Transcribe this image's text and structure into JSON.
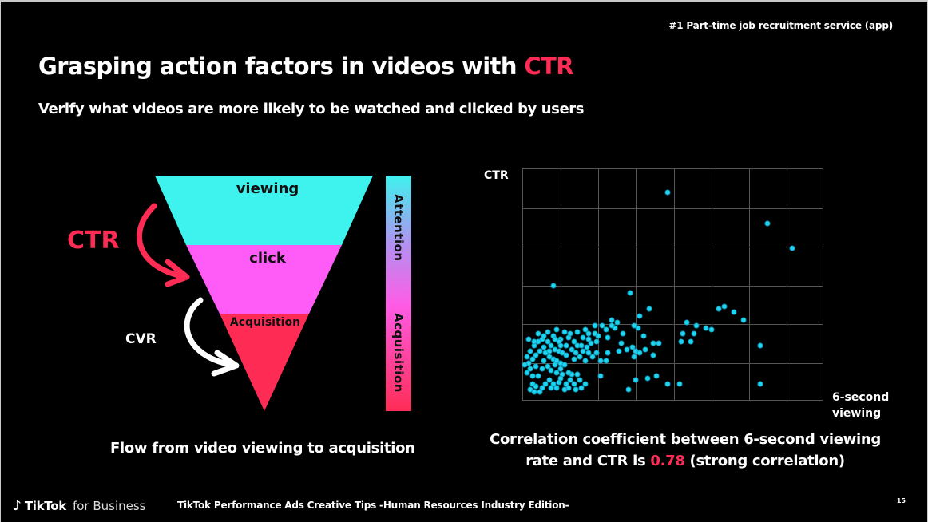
{
  "header": {
    "tagline": "#1 Part-time job recruitment service (app)",
    "title_main": "Grasping action factors in videos with ",
    "title_accent": "CTR",
    "subtitle": "Verify what videos are more likely to be watched and clicked by users"
  },
  "funnel": {
    "stages": [
      {
        "label": "viewing",
        "color": "#3ef2ee"
      },
      {
        "label": "click",
        "color": "#ff5cf7"
      },
      {
        "label": "Acquisition",
        "color": "#fe2c55"
      }
    ],
    "ctr_label": "CTR",
    "cvr_label": "CVR",
    "side_bar": {
      "top_label": "Attention",
      "bottom_label": "Acquisition"
    },
    "caption": "Flow from video viewing to acquisition"
  },
  "scatter": {
    "y_label": "CTR",
    "x_label_line1": "6-second",
    "x_label_line2": "viewing",
    "caption_line1": "Correlation coefficient between 6-second viewing",
    "caption_line2_pre": "rate and CTR is ",
    "caption_value": "0.78",
    "caption_line2_post": " (strong correlation)"
  },
  "chart_data": {
    "type": "scatter",
    "title": "",
    "xlabel": "6-second viewing",
    "ylabel": "CTR",
    "x_grid_divisions": 8,
    "y_grid_divisions": 6,
    "xlim": [
      0,
      8
    ],
    "ylim": [
      0,
      6
    ],
    "grid": true,
    "legend": "none",
    "annotation": "Correlation coefficient 0.78 (strong correlation)",
    "units_note": "axes unlabeled; values in grid units",
    "points": [
      [
        3.85,
        5.4
      ],
      [
        6.5,
        4.6
      ],
      [
        7.15,
        3.95
      ],
      [
        0.8,
        3.0
      ],
      [
        2.85,
        2.8
      ],
      [
        5.35,
        2.45
      ],
      [
        5.2,
        2.4
      ],
      [
        5.6,
        2.3
      ],
      [
        5.85,
        2.1
      ],
      [
        3.35,
        2.4
      ],
      [
        3.1,
        2.2
      ],
      [
        4.35,
        2.05
      ],
      [
        4.85,
        1.9
      ],
      [
        4.6,
        1.95
      ],
      [
        5.0,
        1.85
      ],
      [
        6.3,
        1.45
      ],
      [
        6.3,
        0.45
      ],
      [
        4.25,
        1.75
      ],
      [
        4.55,
        1.75
      ],
      [
        3.6,
        1.5
      ],
      [
        4.2,
        1.55
      ],
      [
        4.45,
        1.55
      ],
      [
        3.2,
        1.7
      ],
      [
        3.05,
        1.9
      ],
      [
        2.95,
        1.95
      ],
      [
        2.65,
        1.75
      ],
      [
        2.45,
        1.9
      ],
      [
        2.35,
        2.1
      ],
      [
        2.5,
        2.05
      ],
      [
        2.35,
        1.95
      ],
      [
        2.1,
        1.95
      ],
      [
        2.2,
        1.85
      ],
      [
        2.25,
        1.65
      ],
      [
        2.0,
        1.7
      ],
      [
        1.95,
        1.55
      ],
      [
        1.75,
        1.75
      ],
      [
        1.65,
        1.85
      ],
      [
        1.9,
        1.95
      ],
      [
        2.6,
        1.5
      ],
      [
        2.55,
        1.3
      ],
      [
        2.75,
        1.35
      ],
      [
        3.0,
        1.3
      ],
      [
        3.25,
        1.35
      ],
      [
        3.45,
        1.2
      ],
      [
        3.1,
        1.25
      ],
      [
        3.45,
        1.5
      ],
      [
        2.95,
        1.15
      ],
      [
        2.9,
        1.4
      ],
      [
        2.25,
        1.25
      ],
      [
        1.85,
        1.15
      ],
      [
        1.95,
        1.25
      ],
      [
        2.05,
        1.05
      ],
      [
        2.2,
        1.05
      ],
      [
        3.0,
        0.55
      ],
      [
        3.3,
        0.6
      ],
      [
        3.55,
        0.65
      ],
      [
        3.85,
        0.45
      ],
      [
        4.15,
        0.45
      ],
      [
        2.8,
        0.3
      ],
      [
        2.05,
        0.65
      ],
      [
        1.15,
        0.45
      ],
      [
        1.25,
        0.55
      ],
      [
        1.2,
        0.35
      ],
      [
        1.65,
        0.45
      ],
      [
        1.05,
        0.7
      ],
      [
        0.95,
        0.5
      ],
      [
        1.1,
        0.3
      ],
      [
        0.75,
        0.35
      ],
      [
        0.6,
        0.45
      ],
      [
        0.5,
        0.35
      ],
      [
        0.45,
        0.25
      ],
      [
        0.35,
        0.4
      ],
      [
        0.3,
        0.25
      ],
      [
        0.2,
        0.3
      ],
      [
        0.9,
        0.35
      ],
      [
        0.8,
        0.45
      ],
      [
        1.35,
        0.45
      ],
      [
        1.4,
        0.3
      ],
      [
        1.55,
        0.35
      ],
      [
        1.5,
        0.55
      ],
      [
        0.25,
        0.65
      ],
      [
        0.7,
        0.55
      ],
      [
        1.0,
        0.6
      ],
      [
        1.3,
        0.7
      ],
      [
        1.45,
        0.7
      ],
      [
        0.15,
        1.0
      ],
      [
        0.1,
        1.15
      ],
      [
        0.2,
        1.3
      ],
      [
        0.3,
        1.45
      ],
      [
        0.4,
        1.55
      ],
      [
        0.5,
        1.6
      ],
      [
        0.65,
        1.55
      ],
      [
        0.75,
        1.45
      ],
      [
        0.85,
        1.35
      ],
      [
        0.95,
        1.3
      ],
      [
        1.05,
        1.25
      ],
      [
        1.15,
        1.2
      ],
      [
        0.25,
        1.1
      ],
      [
        0.35,
        1.2
      ],
      [
        0.45,
        1.3
      ],
      [
        0.55,
        1.4
      ],
      [
        0.6,
        1.25
      ],
      [
        0.7,
        1.15
      ],
      [
        0.8,
        1.1
      ],
      [
        0.9,
        1.05
      ],
      [
        1.0,
        1.0
      ],
      [
        1.1,
        0.95
      ],
      [
        0.2,
        0.85
      ],
      [
        0.35,
        0.9
      ],
      [
        0.5,
        0.85
      ],
      [
        0.65,
        0.9
      ],
      [
        0.75,
        0.8
      ],
      [
        0.9,
        0.75
      ],
      [
        1.0,
        0.85
      ],
      [
        1.2,
        0.75
      ],
      [
        0.3,
        1.55
      ],
      [
        0.55,
        1.7
      ],
      [
        0.8,
        1.7
      ],
      [
        1.0,
        1.6
      ],
      [
        1.2,
        1.65
      ],
      [
        1.35,
        1.55
      ],
      [
        1.45,
        1.45
      ],
      [
        1.3,
        1.35
      ],
      [
        1.15,
        1.45
      ],
      [
        1.25,
        1.75
      ],
      [
        1.45,
        1.8
      ],
      [
        1.6,
        1.65
      ],
      [
        1.55,
        1.45
      ],
      [
        1.4,
        1.25
      ],
      [
        1.6,
        1.3
      ],
      [
        1.7,
        1.4
      ],
      [
        1.8,
        1.5
      ],
      [
        1.75,
        1.25
      ],
      [
        0.15,
        1.6
      ],
      [
        0.4,
        1.75
      ],
      [
        0.65,
        1.8
      ],
      [
        0.9,
        1.85
      ],
      [
        1.1,
        1.8
      ],
      [
        0.95,
        1.55
      ],
      [
        0.85,
        1.6
      ],
      [
        0.1,
        0.75
      ],
      [
        0.05,
        0.95
      ],
      [
        0.4,
        0.65
      ],
      [
        0.55,
        1.05
      ],
      [
        0.7,
        1.3
      ],
      [
        0.85,
        0.95
      ],
      [
        1.35,
        1.1
      ],
      [
        1.5,
        1.15
      ],
      [
        1.65,
        1.05
      ],
      [
        1.75,
        1.6
      ],
      [
        1.9,
        1.75
      ],
      [
        0.25,
        0.45
      ],
      [
        1.0,
        1.45
      ]
    ]
  },
  "footer": {
    "logo_brand": "TikTok",
    "logo_suffix": "for Business",
    "deck_title": "TikTok Performance Ads Creative Tips -Human Resources Industry Edition-",
    "page_number": "15"
  },
  "colors": {
    "accent_red": "#fe2c55",
    "cyan": "#3ef2ee",
    "magenta": "#ff5cf7",
    "dot": "#22d3f0"
  }
}
